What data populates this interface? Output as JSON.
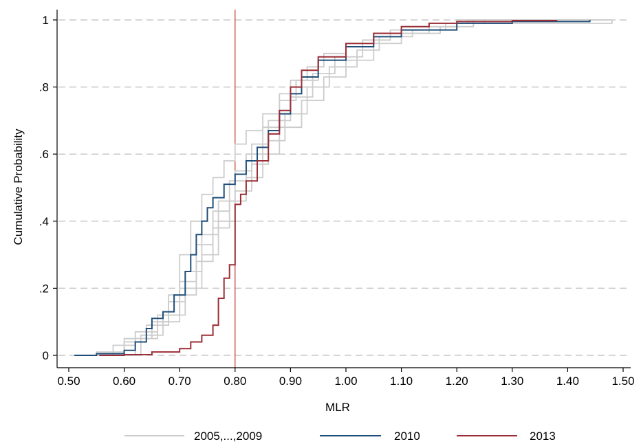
{
  "chart_data": {
    "type": "line",
    "subtype": "cumulative-distribution-step",
    "title": "",
    "xlabel": "MLR",
    "ylabel": "Cumulative Probability",
    "xlim": [
      0.5,
      1.5
    ],
    "ylim": [
      0,
      1
    ],
    "x_ticks": [
      0.5,
      0.6,
      0.7,
      0.8,
      0.9,
      1.0,
      1.1,
      1.2,
      1.3,
      1.4,
      1.5
    ],
    "x_tick_labels": [
      "0.50",
      "0.60",
      "0.70",
      "0.80",
      "0.90",
      "1.00",
      "1.10",
      "1.20",
      "1.30",
      "1.40",
      "1.50"
    ],
    "y_ticks": [
      0,
      0.2,
      0.4,
      0.6,
      0.8,
      1
    ],
    "y_tick_labels": [
      "0",
      ".2",
      ".4",
      ".6",
      ".8",
      "1"
    ],
    "grid": "horizontal dashed",
    "legend_placement": "bottom",
    "reference_line": {
      "x": 0.8,
      "color": "#c0392b"
    },
    "colors": {
      "gray": "#cccccc",
      "blue": "#1f4e79",
      "red": "#9b2d36",
      "grid": "#c8c8c8"
    },
    "legend": [
      {
        "label": "2005,...,2009",
        "color": "#cccccc"
      },
      {
        "label": "2010",
        "color": "#1f4e79"
      },
      {
        "label": "2013",
        "color": "#9b2d36"
      }
    ],
    "series": [
      {
        "group": "2005,...,2009",
        "color": "#cccccc",
        "x": [
          0.51,
          0.55,
          0.6,
          0.65,
          0.68,
          0.7,
          0.72,
          0.74,
          0.76,
          0.78,
          0.8,
          0.82,
          0.85,
          0.88,
          0.9,
          0.93,
          0.96,
          1.0,
          1.05,
          1.1,
          1.2,
          1.25,
          1.48
        ],
        "y": [
          0,
          0.01,
          0.05,
          0.1,
          0.18,
          0.3,
          0.4,
          0.48,
          0.53,
          0.58,
          0.63,
          0.67,
          0.72,
          0.78,
          0.82,
          0.86,
          0.9,
          0.93,
          0.96,
          0.98,
          0.99,
          1,
          1
        ]
      },
      {
        "group": "2005,...,2009",
        "color": "#cccccc",
        "x": [
          0.52,
          0.58,
          0.62,
          0.66,
          0.7,
          0.73,
          0.76,
          0.79,
          0.82,
          0.85,
          0.88,
          0.91,
          0.95,
          1.0,
          1.05,
          1.15,
          1.2,
          1.45
        ],
        "y": [
          0,
          0.03,
          0.07,
          0.12,
          0.22,
          0.33,
          0.43,
          0.52,
          0.6,
          0.68,
          0.76,
          0.82,
          0.88,
          0.93,
          0.96,
          0.99,
          1,
          1
        ]
      },
      {
        "group": "2005,...,2009",
        "color": "#cccccc",
        "x": [
          0.53,
          0.6,
          0.64,
          0.68,
          0.71,
          0.74,
          0.77,
          0.8,
          0.83,
          0.86,
          0.9,
          0.94,
          0.98,
          1.03,
          1.08,
          1.15,
          1.22,
          1.46
        ],
        "y": [
          0,
          0.04,
          0.09,
          0.16,
          0.25,
          0.36,
          0.46,
          0.55,
          0.63,
          0.7,
          0.77,
          0.84,
          0.89,
          0.94,
          0.97,
          0.99,
          1,
          1
        ]
      },
      {
        "group": "2005,...,2009",
        "color": "#cccccc",
        "x": [
          0.55,
          0.62,
          0.66,
          0.7,
          0.73,
          0.76,
          0.79,
          0.82,
          0.85,
          0.88,
          0.92,
          0.96,
          1.0,
          1.05,
          1.1,
          1.17,
          1.23,
          1.48
        ],
        "y": [
          0,
          0.05,
          0.1,
          0.18,
          0.28,
          0.38,
          0.46,
          0.53,
          0.6,
          0.68,
          0.76,
          0.83,
          0.88,
          0.93,
          0.96,
          0.98,
          1,
          1
        ]
      },
      {
        "group": "2005,...,2009",
        "color": "#cccccc",
        "x": [
          0.57,
          0.63,
          0.67,
          0.71,
          0.74,
          0.77,
          0.8,
          0.83,
          0.86,
          0.89,
          0.93,
          0.97,
          1.02,
          1.06,
          1.12,
          1.18,
          1.48
        ],
        "y": [
          0,
          0.06,
          0.12,
          0.2,
          0.3,
          0.4,
          0.49,
          0.57,
          0.64,
          0.72,
          0.8,
          0.86,
          0.91,
          0.95,
          0.97,
          0.99,
          1
        ]
      },
      {
        "name": "2010",
        "color": "#1f4e79",
        "x": [
          0.51,
          0.55,
          0.6,
          0.62,
          0.64,
          0.65,
          0.67,
          0.69,
          0.71,
          0.72,
          0.73,
          0.74,
          0.75,
          0.76,
          0.78,
          0.8,
          0.82,
          0.84,
          0.86,
          0.88,
          0.9,
          0.92,
          0.95,
          1.0,
          1.05,
          1.1,
          1.2,
          1.3,
          1.44
        ],
        "y": [
          0,
          0.005,
          0.015,
          0.04,
          0.08,
          0.11,
          0.13,
          0.18,
          0.25,
          0.3,
          0.36,
          0.4,
          0.44,
          0.47,
          0.51,
          0.54,
          0.58,
          0.62,
          0.67,
          0.72,
          0.78,
          0.83,
          0.88,
          0.92,
          0.95,
          0.97,
          0.99,
          0.995,
          1
        ]
      },
      {
        "name": "2013",
        "color": "#9b2d36",
        "x": [
          0.555,
          0.6,
          0.65,
          0.7,
          0.72,
          0.74,
          0.76,
          0.77,
          0.78,
          0.79,
          0.8,
          0.81,
          0.82,
          0.84,
          0.86,
          0.88,
          0.9,
          0.92,
          0.95,
          1.0,
          1.05,
          1.1,
          1.15,
          1.2,
          1.3,
          1.38
        ],
        "y": [
          0,
          0.002,
          0.01,
          0.02,
          0.04,
          0.06,
          0.09,
          0.17,
          0.23,
          0.27,
          0.45,
          0.48,
          0.52,
          0.58,
          0.66,
          0.73,
          0.8,
          0.85,
          0.89,
          0.93,
          0.96,
          0.98,
          0.99,
          0.995,
          0.998,
          1
        ]
      }
    ]
  }
}
